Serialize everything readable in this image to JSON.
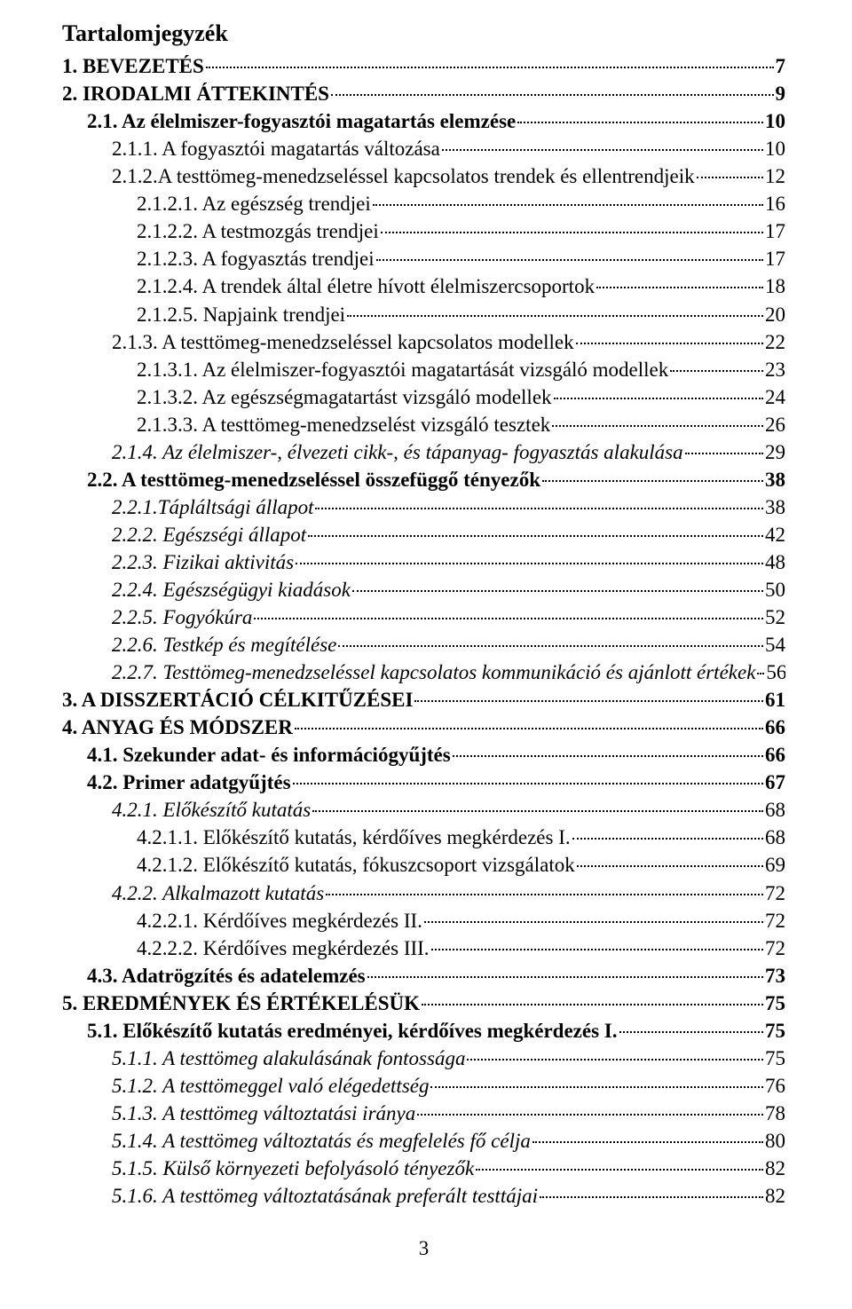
{
  "title": "Tartalomjegyzék",
  "page_number": "3",
  "entries": [
    {
      "label": "1. BEVEZETÉS",
      "page": "7",
      "indent": 0,
      "bold": true,
      "italic": false
    },
    {
      "label": "2. IRODALMI ÁTTEKINTÉS",
      "page": "9",
      "indent": 0,
      "bold": true,
      "italic": false
    },
    {
      "label": "2.1. Az élelmiszer-fogyasztói magatartás elemzése",
      "page": "10",
      "indent": 1,
      "bold": true,
      "italic": false
    },
    {
      "label": "2.1.1. A fogyasztói magatartás változása",
      "page": "10",
      "indent": 2,
      "bold": false,
      "italic": false
    },
    {
      "label": "2.1.2.A testtömeg-menedzseléssel kapcsolatos trendek és ellentrendjeik",
      "page": "12",
      "indent": 2,
      "bold": false,
      "italic": false
    },
    {
      "label": "2.1.2.1. Az egészség trendjei",
      "page": "16",
      "indent": 3,
      "bold": false,
      "italic": false
    },
    {
      "label": "2.1.2.2. A testmozgás trendjei",
      "page": "17",
      "indent": 3,
      "bold": false,
      "italic": false
    },
    {
      "label": "2.1.2.3. A fogyasztás trendjei",
      "page": "17",
      "indent": 3,
      "bold": false,
      "italic": false
    },
    {
      "label": "2.1.2.4. A trendek által életre hívott élelmiszercsoportok",
      "page": "18",
      "indent": 3,
      "bold": false,
      "italic": false
    },
    {
      "label": "2.1.2.5. Napjaink trendjei",
      "page": "20",
      "indent": 3,
      "bold": false,
      "italic": false
    },
    {
      "label": "2.1.3. A testtömeg-menedzseléssel kapcsolatos modellek",
      "page": "22",
      "indent": 2,
      "bold": false,
      "italic": false
    },
    {
      "label": "2.1.3.1. Az élelmiszer-fogyasztói magatartását vizsgáló modellek",
      "page": "23",
      "indent": 3,
      "bold": false,
      "italic": false
    },
    {
      "label": "2.1.3.2. Az egészségmagatartást vizsgáló modellek",
      "page": "24",
      "indent": 3,
      "bold": false,
      "italic": false
    },
    {
      "label": "2.1.3.3. A testtömeg-menedzselést vizsgáló tesztek",
      "page": "26",
      "indent": 3,
      "bold": false,
      "italic": false
    },
    {
      "label": "2.1.4. Az élelmiszer-, élvezeti cikk-, és tápanyag- fogyasztás alakulása",
      "page": "29",
      "indent": 2,
      "bold": false,
      "italic": true
    },
    {
      "label": "2.2. A testtömeg-menedzseléssel összefüggő tényezők",
      "page": "38",
      "indent": 1,
      "bold": true,
      "italic": false
    },
    {
      "label": "2.2.1.Tápláltsági állapot",
      "page": "38",
      "indent": 2,
      "bold": false,
      "italic": true
    },
    {
      "label": "2.2.2. Egészségi állapot",
      "page": "42",
      "indent": 2,
      "bold": false,
      "italic": true
    },
    {
      "label": "2.2.3. Fizikai aktivitás",
      "page": "48",
      "indent": 2,
      "bold": false,
      "italic": true
    },
    {
      "label": "2.2.4. Egészségügyi kiadások",
      "page": "50",
      "indent": 2,
      "bold": false,
      "italic": true
    },
    {
      "label": "2.2.5. Fogyókúra",
      "page": "52",
      "indent": 2,
      "bold": false,
      "italic": true
    },
    {
      "label": "2.2.6. Testkép és megítélése",
      "page": "54",
      "indent": 2,
      "bold": false,
      "italic": true
    },
    {
      "label": "2.2.7. Testtömeg-menedzseléssel kapcsolatos kommunikáció és ajánlott értékek",
      "page": "56",
      "indent": 2,
      "bold": false,
      "italic": true
    },
    {
      "label": "3. A DISSZERTÁCIÓ CÉLKITŰZÉSEI",
      "page": "61",
      "indent": 0,
      "bold": true,
      "italic": false
    },
    {
      "label": "4. ANYAG ÉS MÓDSZER",
      "page": "66",
      "indent": 0,
      "bold": true,
      "italic": false
    },
    {
      "label": "4.1. Szekunder adat- és információgyűjtés",
      "page": "66",
      "indent": 1,
      "bold": true,
      "italic": false
    },
    {
      "label": "4.2. Primer adatgyűjtés",
      "page": "67",
      "indent": 1,
      "bold": true,
      "italic": false
    },
    {
      "label": "4.2.1. Előkészítő kutatás",
      "page": "68",
      "indent": 2,
      "bold": false,
      "italic": true
    },
    {
      "label": "4.2.1.1. Előkészítő kutatás, kérdőíves megkérdezés I.",
      "page": "68",
      "indent": 3,
      "bold": false,
      "italic": false
    },
    {
      "label": "4.2.1.2. Előkészítő kutatás, fókuszcsoport vizsgálatok",
      "page": "69",
      "indent": 3,
      "bold": false,
      "italic": false
    },
    {
      "label": "4.2.2. Alkalmazott kutatás",
      "page": "72",
      "indent": 2,
      "bold": false,
      "italic": true
    },
    {
      "label": "4.2.2.1. Kérdőíves megkérdezés II.",
      "page": "72",
      "indent": 3,
      "bold": false,
      "italic": false
    },
    {
      "label": "4.2.2.2. Kérdőíves megkérdezés III.",
      "page": "72",
      "indent": 3,
      "bold": false,
      "italic": false
    },
    {
      "label": "4.3. Adatrögzítés és adatelemzés",
      "page": "73",
      "indent": 1,
      "bold": true,
      "italic": false
    },
    {
      "label": "5. EREDMÉNYEK ÉS ÉRTÉKELÉSÜK",
      "page": "75",
      "indent": 0,
      "bold": true,
      "italic": false
    },
    {
      "label": "5.1. Előkészítő kutatás eredményei, kérdőíves megkérdezés I.",
      "page": "75",
      "indent": 1,
      "bold": true,
      "italic": false
    },
    {
      "label": "5.1.1. A testtömeg alakulásának fontossága",
      "page": "75",
      "indent": 2,
      "bold": false,
      "italic": true
    },
    {
      "label": "5.1.2. A testtömeggel való elégedettség",
      "page": "76",
      "indent": 2,
      "bold": false,
      "italic": true
    },
    {
      "label": "5.1.3. A testtömeg változtatási iránya",
      "page": "78",
      "indent": 2,
      "bold": false,
      "italic": true
    },
    {
      "label": "5.1.4. A testtömeg változtatás és megfelelés fő célja",
      "page": "80",
      "indent": 2,
      "bold": false,
      "italic": true
    },
    {
      "label": "5.1.5. Külső környezeti befolyásoló tényezők",
      "page": "82",
      "indent": 2,
      "bold": false,
      "italic": true
    },
    {
      "label": "5.1.6. A testtömeg változtatásának preferált testtájai",
      "page": "82",
      "indent": 2,
      "bold": false,
      "italic": true
    }
  ]
}
